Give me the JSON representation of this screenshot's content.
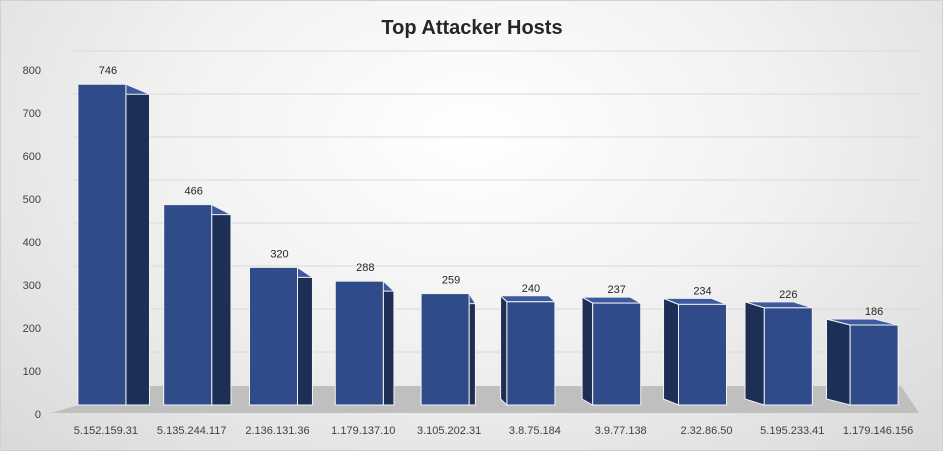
{
  "chart_data": {
    "type": "bar",
    "title": "Top Attacker Hosts",
    "xlabel": "",
    "ylabel": "",
    "categories": [
      "5.152.159.31",
      "5.135.244.117",
      "2.136.131.36",
      "1.179.137.10",
      "3.105.202.31",
      "3.8.75.184",
      "3.9.77.138",
      "2.32.86.50",
      "5.195.233.41",
      "1.179.146.156"
    ],
    "values": [
      746,
      466,
      320,
      288,
      259,
      240,
      237,
      234,
      226,
      186
    ],
    "ylim": [
      0,
      800
    ],
    "yticks": [
      0,
      100,
      200,
      300,
      400,
      500,
      600,
      700,
      800
    ],
    "grid": true,
    "legend": "none",
    "style": "3d-column",
    "colors": {
      "bar_front": "#2f4b8a",
      "bar_side": "#1e2f57",
      "bar_top": "#3d5aa0",
      "bar_edge": "#f2f2f2",
      "floor": "#bfbfbf",
      "grid": "#d9d9d9"
    }
  }
}
